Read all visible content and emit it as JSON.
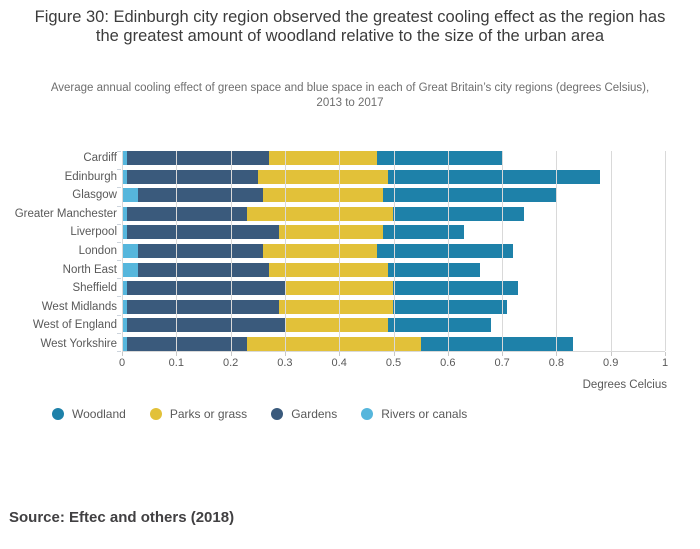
{
  "figure": {
    "title": "Figure 30: Edinburgh city region observed the greatest cooling effect as the region has the greatest amount of woodland relative to the size of the urban area",
    "subtitle": "Average annual cooling effect of green space and blue space in each of Great Britain’s city regions (degrees Celsius), 2013 to 2017",
    "source": "Source: Eftec and others (2018)"
  },
  "chart_data": {
    "type": "bar",
    "orientation": "horizontal",
    "stacked": true,
    "title": "Figure 30: Edinburgh city region observed the greatest cooling effect as the region has the greatest amount of woodland relative to the size of the urban area",
    "subtitle": "Average annual cooling effect of green space and blue space in each of Great Britain’s city regions (degrees Celsius), 2013 to 2017",
    "categories": [
      "Cardiff",
      "Edinburgh",
      "Glasgow",
      "Greater Manchester",
      "Liverpool",
      "London",
      "North East",
      "Sheffield",
      "West Midlands",
      "West of England",
      "West Yorkshire"
    ],
    "series": [
      {
        "name": "Rivers or canals",
        "color": "#56b6dc",
        "values": [
          0.01,
          0.01,
          0.03,
          0.01,
          0.01,
          0.03,
          0.03,
          0.01,
          0.01,
          0.01,
          0.01
        ]
      },
      {
        "name": "Gardens",
        "color": "#3a5a7c",
        "values": [
          0.26,
          0.24,
          0.23,
          0.22,
          0.28,
          0.23,
          0.24,
          0.29,
          0.28,
          0.29,
          0.22
        ]
      },
      {
        "name": "Parks or grass",
        "color": "#e2c139",
        "values": [
          0.2,
          0.24,
          0.22,
          0.27,
          0.19,
          0.21,
          0.22,
          0.2,
          0.21,
          0.19,
          0.32
        ]
      },
      {
        "name": "Woodland",
        "color": "#1e81a9",
        "values": [
          0.23,
          0.39,
          0.32,
          0.24,
          0.15,
          0.25,
          0.17,
          0.23,
          0.21,
          0.19,
          0.28
        ]
      }
    ],
    "totals": [
      0.7,
      0.88,
      0.8,
      0.74,
      0.63,
      0.72,
      0.66,
      0.73,
      0.71,
      0.68,
      0.83
    ],
    "xlabel": "Degrees Celcius",
    "ylabel": "",
    "xlim": [
      0,
      1
    ],
    "xticks": [
      "0",
      "0.1",
      "0.2",
      "0.3",
      "0.4",
      "0.5",
      "0.6",
      "0.7",
      "0.8",
      "0.9",
      "1"
    ],
    "grid": true,
    "legend_position": "bottom",
    "legend": [
      {
        "label": "Woodland",
        "color": "#1e81a9"
      },
      {
        "label": "Parks or grass",
        "color": "#e2c139"
      },
      {
        "label": "Gardens",
        "color": "#3a5a7c"
      },
      {
        "label": "Rivers or canals",
        "color": "#56b6dc"
      }
    ]
  }
}
